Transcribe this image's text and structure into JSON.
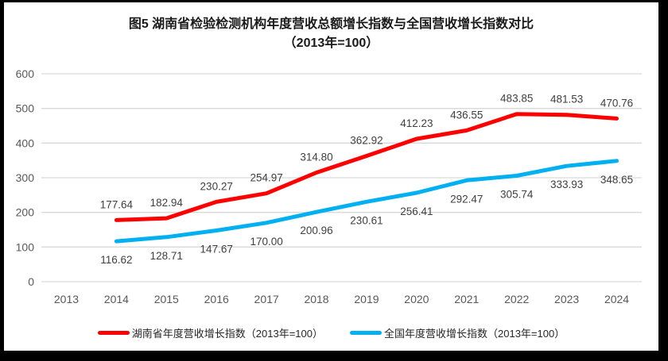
{
  "frame": {
    "border_color": "#000000",
    "card_background": "#FFFFFF"
  },
  "title": {
    "line1": "图5 湖南省检验检测机构年度营收总额增长指数与全国营收增长指数对比",
    "line2": "（2013年=100）"
  },
  "chart_data": {
    "type": "line",
    "categories": [
      "2013",
      "2014",
      "2015",
      "2016",
      "2017",
      "2018",
      "2019",
      "2020",
      "2021",
      "2022",
      "2023",
      "2024"
    ],
    "series": [
      {
        "name": "湖南省年度营收增长指数（2013年=100）",
        "slug": "hunan",
        "color": "#FF0000",
        "label_position": "above",
        "values": [
          null,
          177.64,
          182.94,
          230.27,
          254.97,
          314.8,
          362.92,
          412.23,
          436.55,
          483.85,
          481.53,
          470.76
        ]
      },
      {
        "name": "全国年度营收增长指数（2013年=100）",
        "slug": "national",
        "color": "#00B0F0",
        "label_position": "below",
        "values": [
          null,
          116.62,
          128.71,
          147.67,
          170.0,
          200.96,
          230.61,
          256.41,
          292.47,
          305.74,
          333.93,
          348.65
        ]
      }
    ],
    "ylim": [
      0,
      600
    ],
    "ytick_step": 100,
    "yticks": [
      0,
      100,
      200,
      300,
      400,
      500,
      600
    ],
    "value_decimals": 2,
    "grid": true,
    "legend_position": "bottom",
    "axis_label_color": "#595959",
    "gridline_color": "#D9D9D9",
    "data_label_color": "#404040",
    "line_width": 5
  }
}
